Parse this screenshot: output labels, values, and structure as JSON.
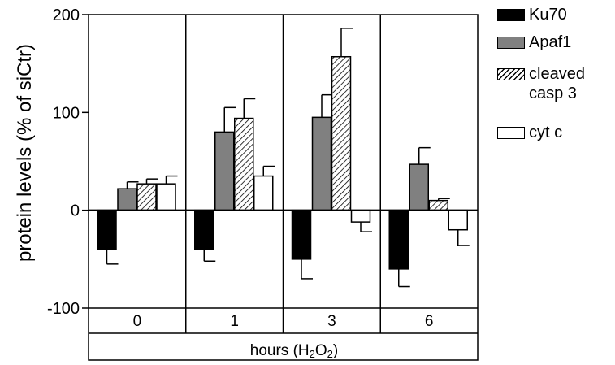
{
  "chart_data": {
    "type": "bar",
    "ylabel": "protein levels (% of siCtr)",
    "xlabel": "hours (H₂O₂)",
    "xlabel_parts": {
      "prefix": "hours (H",
      "sub1": "2",
      "mid": "O",
      "sub2": "2",
      "suffix": ")"
    },
    "ylim": [
      -100,
      200
    ],
    "yticks": [
      -100,
      0,
      100,
      200
    ],
    "categories": [
      "0",
      "1",
      "3",
      "6"
    ],
    "grid": false,
    "legend_position": "right",
    "series": [
      {
        "name": "Ku70",
        "pattern": "solid",
        "color": "#000000",
        "values": [
          -40,
          -40,
          -50,
          -60
        ],
        "errors": [
          15,
          12,
          20,
          18
        ]
      },
      {
        "name": "Apaf1",
        "pattern": "solid",
        "color": "#808080",
        "values": [
          22,
          80,
          95,
          47
        ],
        "errors": [
          7,
          25,
          23,
          17
        ]
      },
      {
        "name": "cleaved casp 3",
        "pattern": "hatched",
        "color": "#ffffff",
        "values": [
          27,
          94,
          157,
          10
        ],
        "errors": [
          5,
          20,
          29,
          2
        ]
      },
      {
        "name": "cyt c",
        "pattern": "solid",
        "color": "#ffffff",
        "values": [
          27,
          35,
          -12,
          -20
        ],
        "errors": [
          8,
          10,
          10,
          16
        ]
      }
    ]
  }
}
